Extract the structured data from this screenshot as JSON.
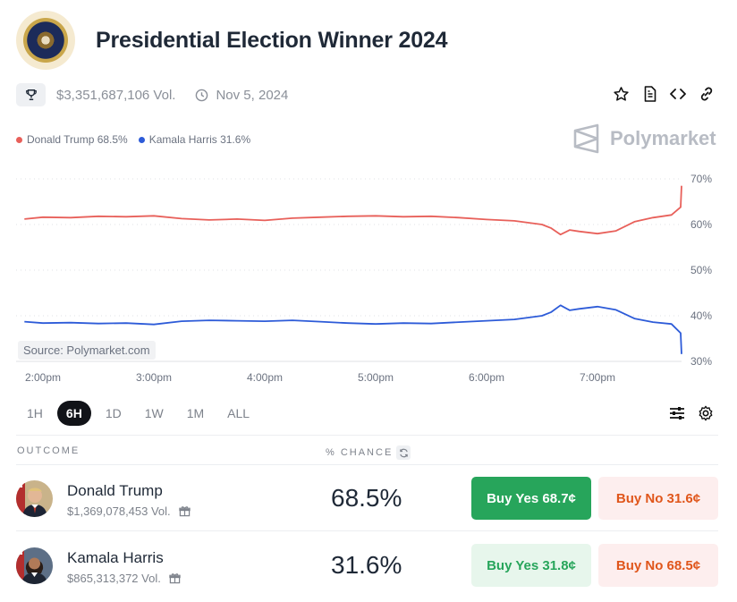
{
  "header": {
    "title": "Presidential Election Winner 2024",
    "seal_icon": "presidential-seal-icon"
  },
  "meta": {
    "volume": "$3,351,687,106 Vol.",
    "date": "Nov 5, 2024"
  },
  "brand": {
    "name": "Polymarket"
  },
  "legend": [
    {
      "label": "Donald Trump 68.5%",
      "color": "#e8605a"
    },
    {
      "label": "Kamala Harris 31.6%",
      "color": "#2d5bd8"
    }
  ],
  "chart_data": {
    "type": "line",
    "x_ticks": [
      "2:00pm",
      "3:00pm",
      "4:00pm",
      "5:00pm",
      "6:00pm",
      "7:00pm"
    ],
    "y_ticks": [
      "70%",
      "60%",
      "50%",
      "40%",
      "30%"
    ],
    "ylim": [
      30,
      70
    ],
    "grid": true,
    "source": "Source: Polymarket.com",
    "series": [
      {
        "name": "Donald Trump",
        "color": "#e8605a",
        "x": [
          "1:50pm",
          "2:00pm",
          "2:15pm",
          "2:30pm",
          "2:45pm",
          "3:00pm",
          "3:15pm",
          "3:30pm",
          "3:45pm",
          "4:00pm",
          "4:15pm",
          "4:30pm",
          "4:45pm",
          "5:00pm",
          "5:15pm",
          "5:30pm",
          "5:45pm",
          "6:00pm",
          "6:15pm",
          "6:30pm",
          "6:35pm",
          "6:40pm",
          "6:45pm",
          "6:50pm",
          "7:00pm",
          "7:10pm",
          "7:20pm",
          "7:30pm",
          "7:40pm",
          "7:45pm",
          "7:50pm"
        ],
        "values": [
          61.2,
          61.6,
          61.5,
          61.8,
          61.7,
          61.9,
          61.3,
          61.0,
          61.2,
          60.9,
          61.4,
          61.6,
          61.8,
          61.9,
          61.7,
          61.8,
          61.5,
          61.1,
          60.8,
          60.0,
          59.2,
          57.8,
          58.8,
          58.5,
          58.0,
          58.6,
          60.6,
          61.5,
          62.1,
          63.8,
          68.5
        ]
      },
      {
        "name": "Kamala Harris",
        "color": "#2d5bd8",
        "x": [
          "1:50pm",
          "2:00pm",
          "2:15pm",
          "2:30pm",
          "2:45pm",
          "3:00pm",
          "3:15pm",
          "3:30pm",
          "3:45pm",
          "4:00pm",
          "4:15pm",
          "4:30pm",
          "4:45pm",
          "5:00pm",
          "5:15pm",
          "5:30pm",
          "5:45pm",
          "6:00pm",
          "6:15pm",
          "6:30pm",
          "6:35pm",
          "6:40pm",
          "6:45pm",
          "6:50pm",
          "7:00pm",
          "7:10pm",
          "7:20pm",
          "7:30pm",
          "7:40pm",
          "7:45pm",
          "7:50pm"
        ],
        "values": [
          38.7,
          38.4,
          38.5,
          38.3,
          38.4,
          38.1,
          38.8,
          39.0,
          38.9,
          38.8,
          39.0,
          38.7,
          38.4,
          38.2,
          38.4,
          38.3,
          38.6,
          38.9,
          39.2,
          40.0,
          40.8,
          42.3,
          41.2,
          41.5,
          42.0,
          41.3,
          39.4,
          38.6,
          38.2,
          36.2,
          31.6
        ]
      }
    ]
  },
  "ranges": [
    "1H",
    "6H",
    "1D",
    "1W",
    "1M",
    "ALL"
  ],
  "active_range": "6H",
  "table": {
    "col_outcome": "OUTCOME",
    "col_chance": "% CHANCE",
    "rows": [
      {
        "name": "Donald Trump",
        "volume": "$1,369,078,453 Vol.",
        "chance": "68.5%",
        "buy_yes": "Buy Yes 68.7¢",
        "buy_no": "Buy No 31.6¢"
      },
      {
        "name": "Kamala Harris",
        "volume": "$865,313,372 Vol.",
        "chance": "31.6%",
        "buy_yes": "Buy Yes 31.8¢",
        "buy_no": "Buy No 68.5¢"
      }
    ]
  }
}
